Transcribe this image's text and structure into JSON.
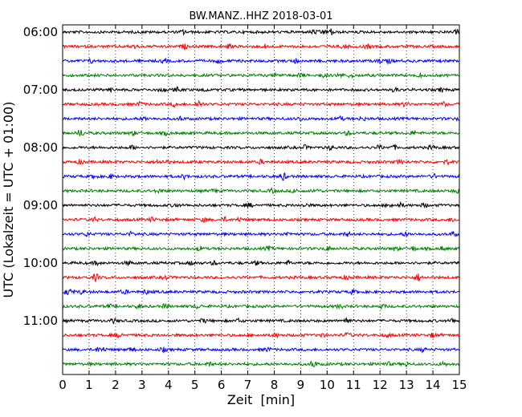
{
  "chart_data": {
    "type": "line",
    "title": "BW.MANZ..HHZ 2018-03-01",
    "xlabel": "Zeit  [min]",
    "ylabel": "UTC (Lokalzeit = UTC + 01:00)",
    "xlim": [
      0,
      15
    ],
    "x_ticks": [
      "0",
      "1",
      "2",
      "3",
      "4",
      "5",
      "6",
      "7",
      "8",
      "9",
      "10",
      "11",
      "12",
      "13",
      "14",
      "15"
    ],
    "y_tick_labels": [
      "06:00",
      "07:00",
      "08:00",
      "09:00",
      "10:00",
      "11:00"
    ],
    "y_tick_trace_index": [
      0,
      4,
      8,
      12,
      16,
      20
    ],
    "grid": "vertical dotted",
    "trace_colors": [
      "#000000",
      "#ff0000",
      "#0000ff",
      "#008000"
    ],
    "traces": [
      {
        "start": "06:00"
      },
      {
        "start": "06:15"
      },
      {
        "start": "06:30"
      },
      {
        "start": "06:45"
      },
      {
        "start": "07:00"
      },
      {
        "start": "07:15"
      },
      {
        "start": "07:30"
      },
      {
        "start": "07:45"
      },
      {
        "start": "08:00"
      },
      {
        "start": "08:15"
      },
      {
        "start": "08:30"
      },
      {
        "start": "08:45"
      },
      {
        "start": "09:00"
      },
      {
        "start": "09:15"
      },
      {
        "start": "09:30"
      },
      {
        "start": "09:45"
      },
      {
        "start": "10:00"
      },
      {
        "start": "10:15"
      },
      {
        "start": "10:30"
      },
      {
        "start": "10:45"
      },
      {
        "start": "11:00"
      },
      {
        "start": "11:15"
      },
      {
        "start": "11:30"
      },
      {
        "start": "11:45"
      }
    ]
  }
}
